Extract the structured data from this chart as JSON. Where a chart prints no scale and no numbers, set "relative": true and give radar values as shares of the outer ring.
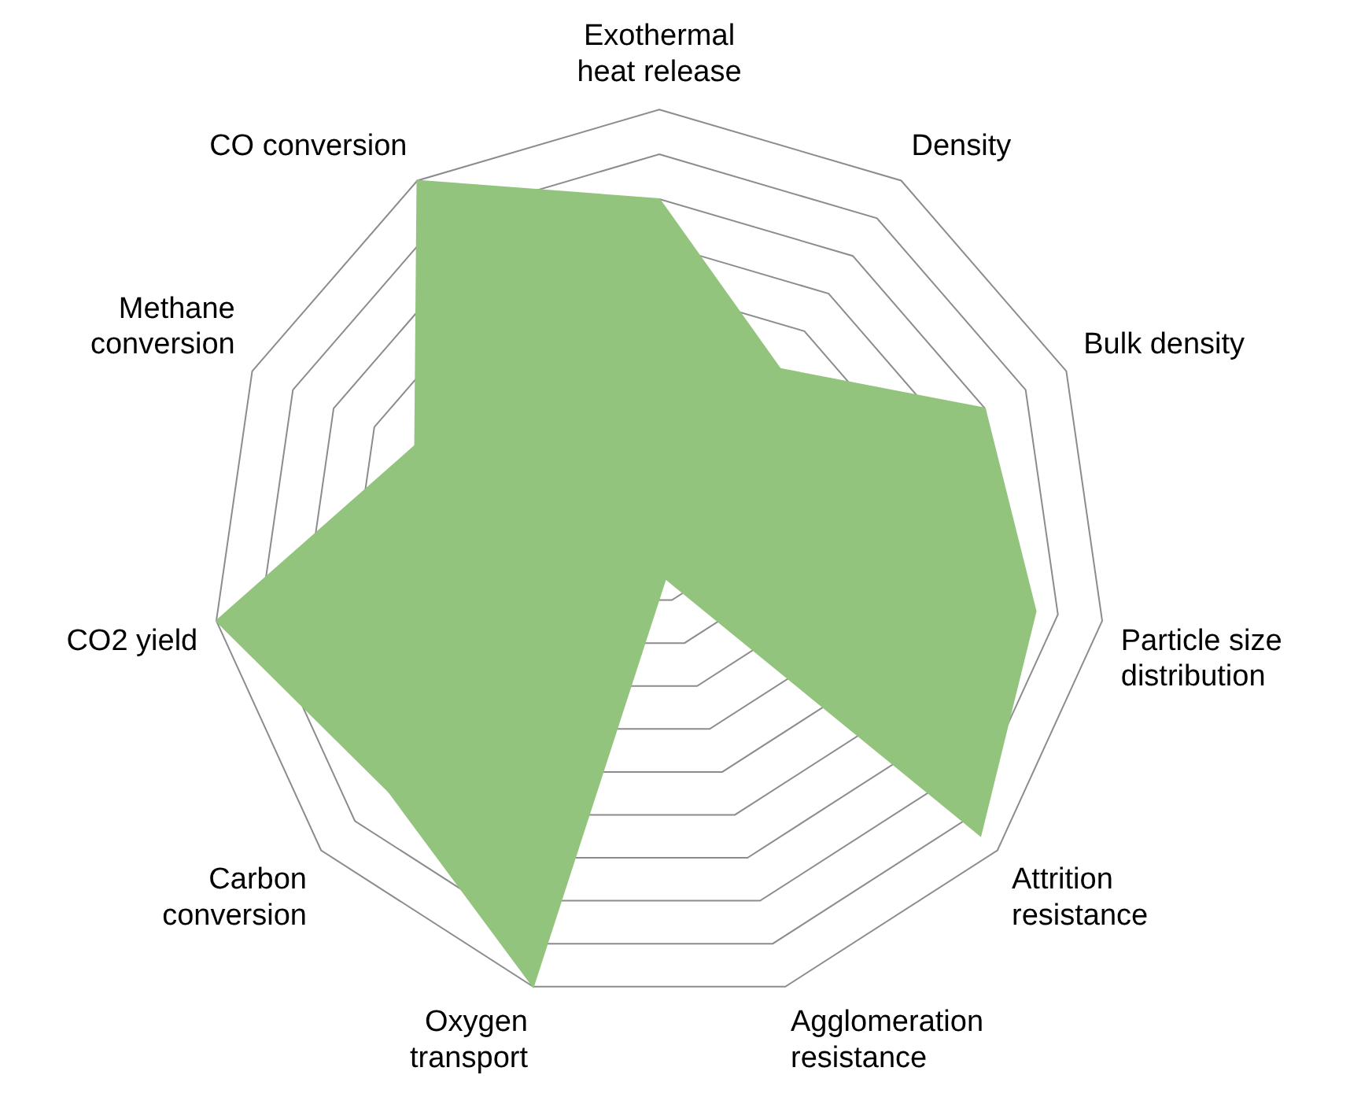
{
  "chart_data": {
    "type": "radar",
    "relative": true,
    "categories": [
      "Exothermal heat release",
      "Density",
      "Bulk density",
      "Particle size distribution",
      "Attrition resistance",
      "Agglomeration resistance",
      "Oxygen transport",
      "Carbon conversion",
      "CO2 yield",
      "Methane conversion",
      "CO conversion"
    ],
    "series": [
      {
        "color": "#93c47d",
        "values": [
          0.8,
          0.5,
          0.8,
          0.85,
          0.95,
          0.05,
          1,
          0.8,
          1,
          0.6,
          1
        ]
      }
    ],
    "legend": false
  }
}
